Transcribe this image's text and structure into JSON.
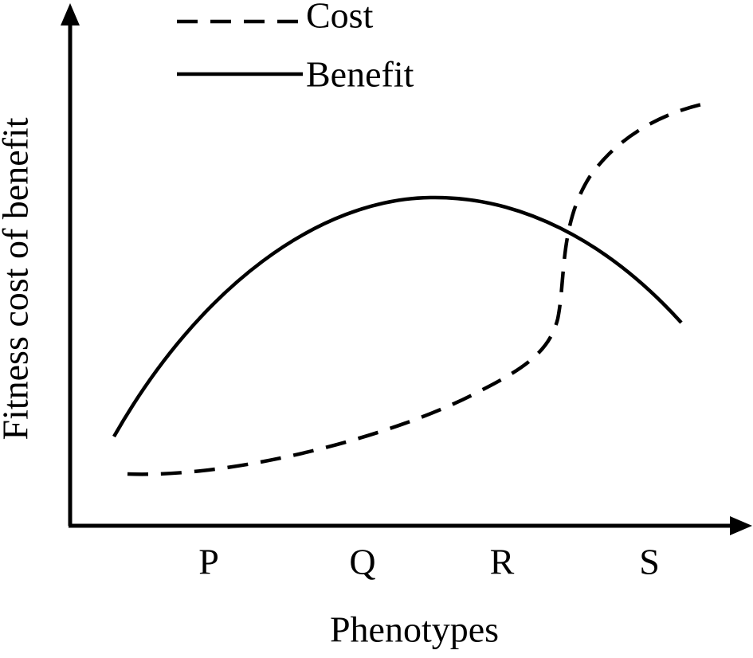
{
  "legend": {
    "items": [
      "Cost",
      "Benefit"
    ]
  },
  "axes": {
    "y_label": "Fitness cost of benefit",
    "x_label": "Phenotypes",
    "x_categories": [
      "P",
      "Q",
      "R",
      "S"
    ]
  }
}
